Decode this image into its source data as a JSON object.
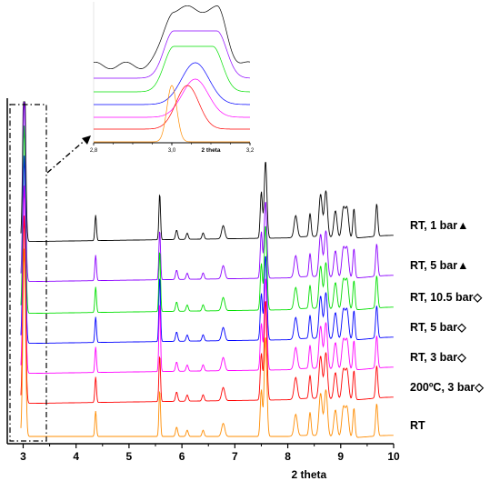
{
  "chart_data": [
    {
      "type": "line",
      "panel": "main",
      "xlabel": "2 theta",
      "ylabel": "",
      "xlim": [
        2.7,
        10
      ],
      "xticks": [
        3,
        4,
        5,
        6,
        7,
        8,
        9,
        10
      ],
      "baseline_peaks": [
        3.02,
        4.37,
        5.58,
        5.9,
        6.1,
        6.4,
        6.78,
        7.5,
        7.58,
        8.15,
        8.42,
        8.62,
        8.72,
        8.9,
        9.05,
        9.12,
        9.25,
        9.68
      ],
      "series": [
        {
          "name": "RT, 1 bar▲",
          "color": "#000000",
          "marker": "▲",
          "offset": 6,
          "peak_intensities": [
            1.35,
            0.33,
            0.6,
            0.12,
            0.08,
            0.08,
            0.17,
            0.6,
            1.0,
            0.28,
            0.3,
            0.55,
            0.6,
            0.35,
            0.38,
            0.38,
            0.38,
            0.42
          ]
        },
        {
          "name": "RT, 5 bar▲",
          "color": "#8b00ff",
          "marker": "▲",
          "offset": 5,
          "peak_intensities": [
            1.35,
            0.33,
            0.65,
            0.12,
            0.08,
            0.08,
            0.17,
            0.6,
            1.0,
            0.28,
            0.3,
            0.55,
            0.6,
            0.35,
            0.38,
            0.38,
            0.38,
            0.42
          ]
        },
        {
          "name": "RT, 10.5 bar◇",
          "color": "#00e000",
          "marker": "◇",
          "offset": 4,
          "peak_intensities": [
            1.35,
            0.33,
            0.8,
            0.12,
            0.08,
            0.08,
            0.17,
            0.6,
            1.1,
            0.28,
            0.3,
            0.55,
            0.6,
            0.35,
            0.38,
            0.38,
            0.38,
            0.42
          ]
        },
        {
          "name": "RT, 5 bar◇",
          "color": "#0000ff",
          "marker": "◇",
          "offset": 3,
          "peak_intensities": [
            1.35,
            0.33,
            0.85,
            0.12,
            0.08,
            0.08,
            0.17,
            0.6,
            1.1,
            0.28,
            0.3,
            0.55,
            0.6,
            0.35,
            0.38,
            0.38,
            0.38,
            0.42
          ]
        },
        {
          "name": "RT, 3 bar◇",
          "color": "#ff00ff",
          "marker": "◇",
          "offset": 2,
          "peak_intensities": [
            1.35,
            0.33,
            0.9,
            0.12,
            0.08,
            0.08,
            0.17,
            0.6,
            1.2,
            0.28,
            0.3,
            0.55,
            0.6,
            0.35,
            0.38,
            0.38,
            0.38,
            0.42
          ]
        },
        {
          "name": "200ºC, 3 bar◇",
          "color": "#ff0000",
          "marker": "◇",
          "offset": 1,
          "peak_intensities": [
            1.35,
            0.33,
            0.6,
            0.12,
            0.08,
            0.08,
            0.17,
            0.6,
            1.3,
            0.28,
            0.3,
            0.55,
            0.6,
            0.35,
            0.38,
            0.38,
            0.38,
            0.42
          ]
        },
        {
          "name": "RT",
          "color": "#ff8c00",
          "marker": "",
          "offset": 0,
          "peak_intensities": [
            1.35,
            0.33,
            0.6,
            0.12,
            0.08,
            0.08,
            0.17,
            0.6,
            1.3,
            0.28,
            0.3,
            0.55,
            0.6,
            0.35,
            0.38,
            0.38,
            0.38,
            0.42
          ]
        }
      ]
    },
    {
      "type": "line",
      "panel": "inset",
      "xlabel": "2 theta",
      "ylabel": "",
      "xlim": [
        2.8,
        3.2
      ],
      "xtick_labels": [
        "2,8",
        "3,0",
        "3,2"
      ],
      "series": [
        {
          "color": "#000000",
          "peak_center": 3.06,
          "peak_width": 0.1
        },
        {
          "color": "#8b00ff",
          "peak_center": 3.06,
          "peak_width": 0.1
        },
        {
          "color": "#00e000",
          "peak_center": 3.055,
          "peak_width": 0.09
        },
        {
          "color": "#0000ff",
          "peak_center": 3.06,
          "peak_width": 0.085
        },
        {
          "color": "#ff00ff",
          "peak_center": 3.06,
          "peak_width": 0.08
        },
        {
          "color": "#ff0000",
          "peak_center": 3.04,
          "peak_width": 0.07
        },
        {
          "color": "#ff8c00",
          "peak_center": 3.0,
          "peak_width": 0.03
        }
      ]
    }
  ]
}
